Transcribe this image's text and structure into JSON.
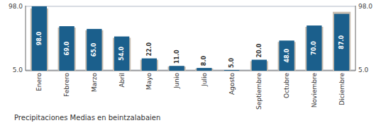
{
  "chart_data": {
    "type": "bar",
    "title": "Precipitaciones Medias en beintzalabaien",
    "categories": [
      "Enero",
      "Febrero",
      "Marzo",
      "Abril",
      "Mayo",
      "Junio",
      "Julio",
      "Agosto",
      "Septiembre",
      "Octubre",
      "Noviembre",
      "Diciembre"
    ],
    "series": [
      {
        "color": "#c8bdb0",
        "values": [
          95,
          67,
          63,
          52,
          20,
          10,
          7,
          4,
          18,
          46,
          68,
          90
        ]
      },
      {
        "color": "#1b5f8c",
        "values": [
          98,
          69,
          65,
          54,
          22,
          11,
          8,
          5,
          20,
          48,
          70,
          87
        ],
        "value_labels": [
          "98.0",
          "69.0",
          "65.0",
          "54.0",
          "22.0",
          "11.0",
          "8.0",
          "5.0",
          "20.0",
          "48.0",
          "70.0",
          "87.0"
        ]
      }
    ],
    "ylim": [
      4,
      99
    ],
    "yticks": [
      {
        "value": 5,
        "label": "5.0"
      },
      {
        "value": 98,
        "label": "98.0"
      }
    ],
    "y2lim": [
      4,
      99
    ],
    "y2ticks": [
      {
        "value": 5,
        "label": "5.0"
      },
      {
        "value": 98,
        "label": "98.0"
      }
    ],
    "grid": true,
    "data_labels": true
  }
}
